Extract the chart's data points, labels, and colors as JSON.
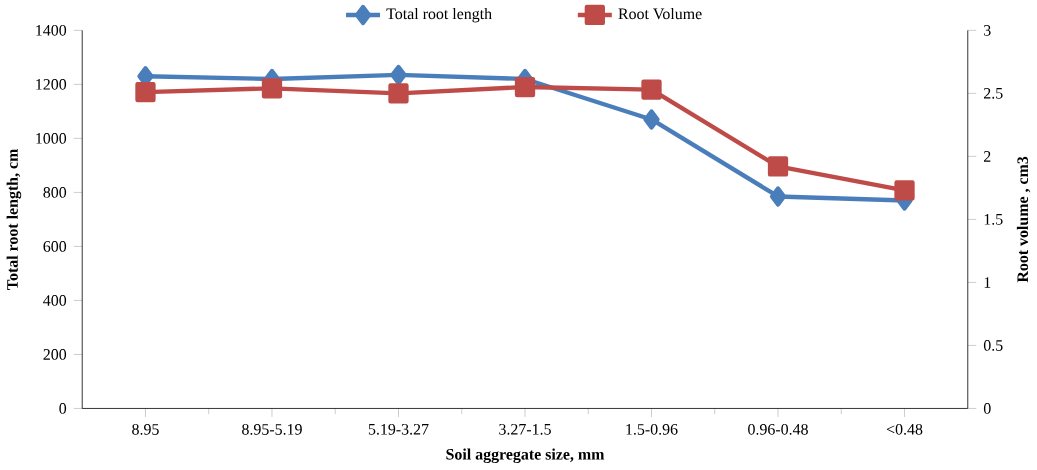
{
  "chart_data": {
    "type": "line",
    "xlabel": "Soil aggregate size, mm",
    "ylabel": "Total root length, cm",
    "y2label": "Root volume , cm3",
    "categories": [
      "8.95",
      "8.95-5.19",
      "5.19-3.27",
      "3.27-1.5",
      "1.5-0.96",
      "0.96-0.48",
      "<0.48"
    ],
    "series": [
      {
        "name": "Total root length",
        "color": "#4a7ebb",
        "marker": "diamond",
        "values": [
          1230,
          1220,
          1235,
          1220,
          1070,
          785,
          770
        ]
      },
      {
        "name": "Root Volume",
        "color": "#be4b48",
        "marker": "square",
        "axis": "y2",
        "values": [
          2.51,
          2.54,
          2.5,
          2.55,
          2.53,
          1.92,
          1.73
        ]
      }
    ],
    "ylim": [
      0,
      1400
    ],
    "yticks": [
      0,
      200,
      400,
      600,
      800,
      1000,
      1200,
      1400
    ],
    "y2lim": [
      0,
      3
    ],
    "y2ticks": [
      0,
      0.5,
      1,
      1.5,
      2,
      2.5,
      3
    ],
    "legend": "top",
    "grid": false
  }
}
